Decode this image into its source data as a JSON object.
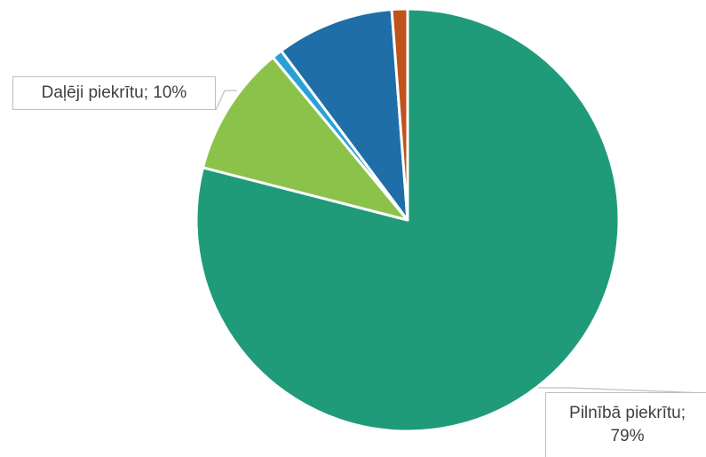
{
  "chart_data": {
    "type": "pie",
    "title": "",
    "slices": [
      {
        "label": "Pilnībā piekrītu",
        "value": 79,
        "color": "#1f9b7a",
        "data_label": "Pilnībā piekrītu; 79%"
      },
      {
        "label": "Daļēji piekrītu",
        "value": 10,
        "color": "#8bc34a",
        "data_label": "Daļēji piekrītu; 10%"
      },
      {
        "label": "",
        "value": 0.8,
        "color": "#2aa0d8",
        "data_label": ""
      },
      {
        "label": "",
        "value": 9,
        "color": "#1f6ea8",
        "data_label": ""
      },
      {
        "label": "",
        "value": 1.2,
        "color": "#c0521c",
        "data_label": ""
      }
    ],
    "legend": "none"
  }
}
